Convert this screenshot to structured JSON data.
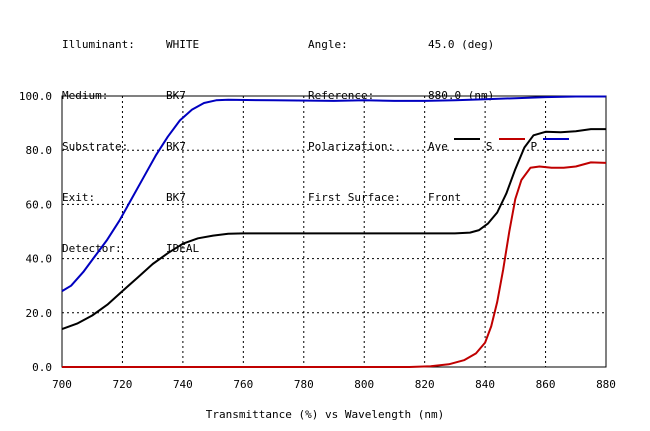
{
  "header": {
    "left": [
      {
        "label": "Illuminant:",
        "value": "WHITE"
      },
      {
        "label": "Medium:",
        "value": "BK7"
      },
      {
        "label": "Substrate:",
        "value": "BK7"
      },
      {
        "label": "Exit:",
        "value": "BK7"
      },
      {
        "label": "Detector:",
        "value": "IDEAL"
      }
    ],
    "right": [
      {
        "label": "Angle:",
        "value": "45.0 (deg)"
      },
      {
        "label": "Reference:",
        "value": "880.0 (nm)"
      },
      {
        "label": "Polarization:",
        "value": "Ave"
      },
      {
        "label": "First Surface:",
        "value": "Front"
      }
    ]
  },
  "colors": {
    "ave": "#000000",
    "s": "#c00000",
    "p": "#0000c0",
    "grid": "#000000"
  },
  "chart_data": {
    "type": "line",
    "xlabel": "Transmittance (%)  vs  Wavelength (nm)",
    "xlim": [
      700,
      880
    ],
    "ylim": [
      0,
      100
    ],
    "x_ticks": [
      "700",
      "720",
      "740",
      "760",
      "780",
      "800",
      "820",
      "840",
      "860",
      "880"
    ],
    "y_ticks": [
      "0.0",
      "20.0",
      "40.0",
      "60.0",
      "80.0",
      "100.0"
    ],
    "grid": true,
    "series": [
      {
        "name": "Ave",
        "color": "#000000",
        "points": [
          [
            700,
            14
          ],
          [
            705,
            16
          ],
          [
            710,
            19
          ],
          [
            715,
            23
          ],
          [
            720,
            28
          ],
          [
            725,
            33
          ],
          [
            730,
            38
          ],
          [
            735,
            42
          ],
          [
            740,
            45.5
          ],
          [
            745,
            47.5
          ],
          [
            750,
            48.5
          ],
          [
            755,
            49.2
          ],
          [
            760,
            49.3
          ],
          [
            780,
            49.3
          ],
          [
            800,
            49.3
          ],
          [
            820,
            49.3
          ],
          [
            830,
            49.3
          ],
          [
            835,
            49.6
          ],
          [
            838,
            50.5
          ],
          [
            841,
            53
          ],
          [
            844,
            57
          ],
          [
            847,
            64
          ],
          [
            850,
            73
          ],
          [
            853,
            81
          ],
          [
            856,
            85.5
          ],
          [
            860,
            86.8
          ],
          [
            865,
            86.6
          ],
          [
            870,
            87
          ],
          [
            875,
            87.8
          ],
          [
            880,
            87.8
          ]
        ]
      },
      {
        "name": "S",
        "color": "#c00000",
        "points": [
          [
            700,
            0
          ],
          [
            720,
            0
          ],
          [
            740,
            0
          ],
          [
            760,
            0
          ],
          [
            780,
            0
          ],
          [
            800,
            0
          ],
          [
            815,
            0
          ],
          [
            822,
            0.3
          ],
          [
            828,
            1
          ],
          [
            833,
            2.5
          ],
          [
            837,
            5
          ],
          [
            840,
            9
          ],
          [
            842,
            15
          ],
          [
            844,
            24
          ],
          [
            846,
            36
          ],
          [
            848,
            50
          ],
          [
            850,
            62
          ],
          [
            852,
            69
          ],
          [
            855,
            73.5
          ],
          [
            858,
            74
          ],
          [
            862,
            73.5
          ],
          [
            866,
            73.5
          ],
          [
            870,
            74
          ],
          [
            875,
            75.5
          ],
          [
            880,
            75.3
          ]
        ]
      },
      {
        "name": "P",
        "color": "#0000c0",
        "points": [
          [
            700,
            28
          ],
          [
            703,
            30
          ],
          [
            707,
            35
          ],
          [
            711,
            41
          ],
          [
            715,
            47
          ],
          [
            719,
            54
          ],
          [
            723,
            62
          ],
          [
            727,
            70
          ],
          [
            731,
            78
          ],
          [
            735,
            85
          ],
          [
            739,
            91
          ],
          [
            743,
            95
          ],
          [
            747,
            97.4
          ],
          [
            751,
            98.4
          ],
          [
            755,
            98.6
          ],
          [
            770,
            98.4
          ],
          [
            790,
            98.2
          ],
          [
            800,
            98.4
          ],
          [
            810,
            98.2
          ],
          [
            820,
            98.2
          ],
          [
            830,
            98.4
          ],
          [
            840,
            98.8
          ],
          [
            850,
            99.2
          ],
          [
            860,
            99.6
          ],
          [
            870,
            99.8
          ],
          [
            880,
            99.8
          ]
        ]
      }
    ]
  }
}
